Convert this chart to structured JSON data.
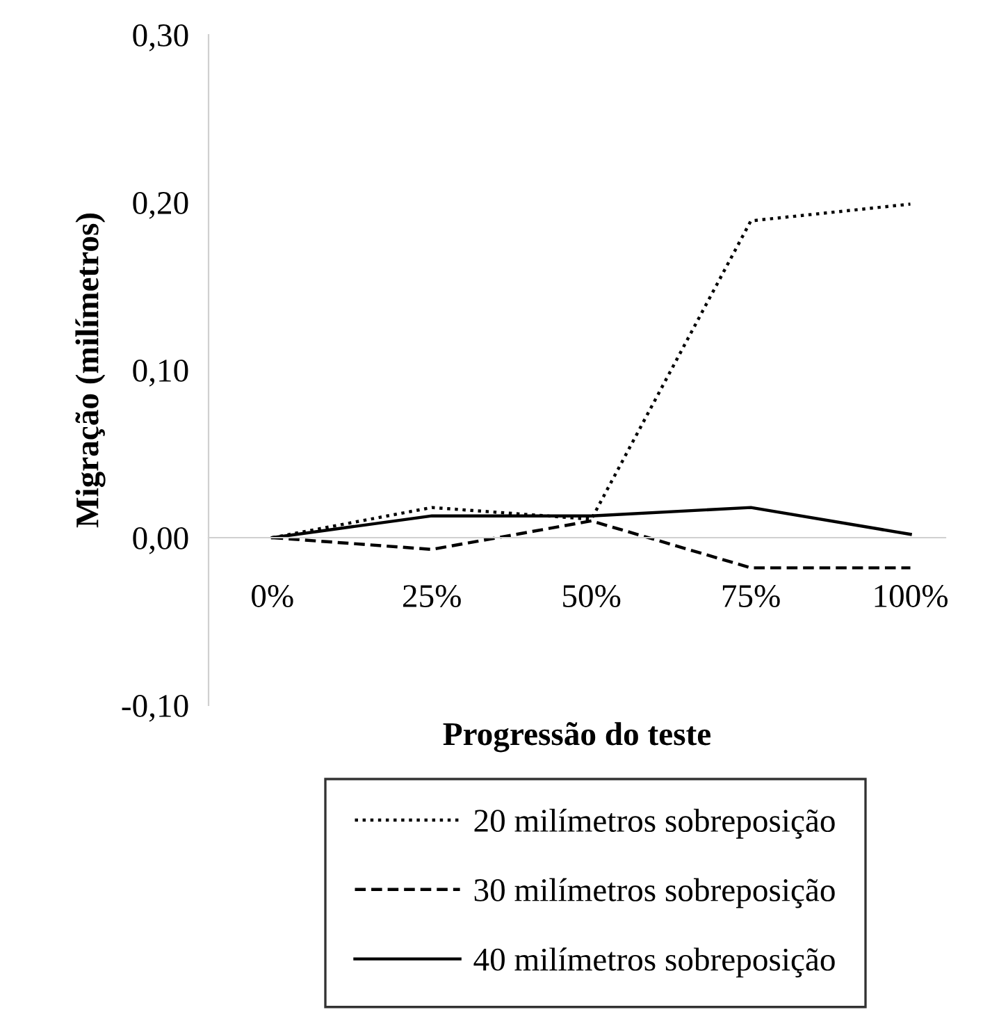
{
  "chart_data": {
    "type": "line",
    "xlabel": "Progressão do teste",
    "ylabel": "Migração (milímetros)",
    "categories": [
      "0%",
      "25%",
      "50%",
      "75%",
      "100%"
    ],
    "series": [
      {
        "name": "20 milímetros sobreposição",
        "color": "#000000",
        "line_style": "dotted",
        "values": [
          0.0,
          0.018,
          0.011,
          0.189,
          0.199
        ]
      },
      {
        "name": "30 milímetros sobreposição",
        "color": "#000000",
        "line_style": "dashed",
        "values": [
          0.0,
          -0.007,
          0.01,
          -0.018,
          -0.018
        ]
      },
      {
        "name": "40 milímetros sobreposição",
        "color": "#000000",
        "line_style": "solid",
        "values": [
          0.0,
          0.013,
          0.013,
          0.018,
          0.002
        ]
      }
    ],
    "ylim": [
      -0.1,
      0.3
    ],
    "yticks": [
      {
        "value": -0.1,
        "label": "-0,10"
      },
      {
        "value": 0.0,
        "label": "0,00"
      },
      {
        "value": 0.1,
        "label": "0,10"
      },
      {
        "value": 0.2,
        "label": "0,20"
      },
      {
        "value": 0.3,
        "label": "0,30"
      }
    ],
    "grid": false,
    "legend": "bottom",
    "marker": "none"
  }
}
